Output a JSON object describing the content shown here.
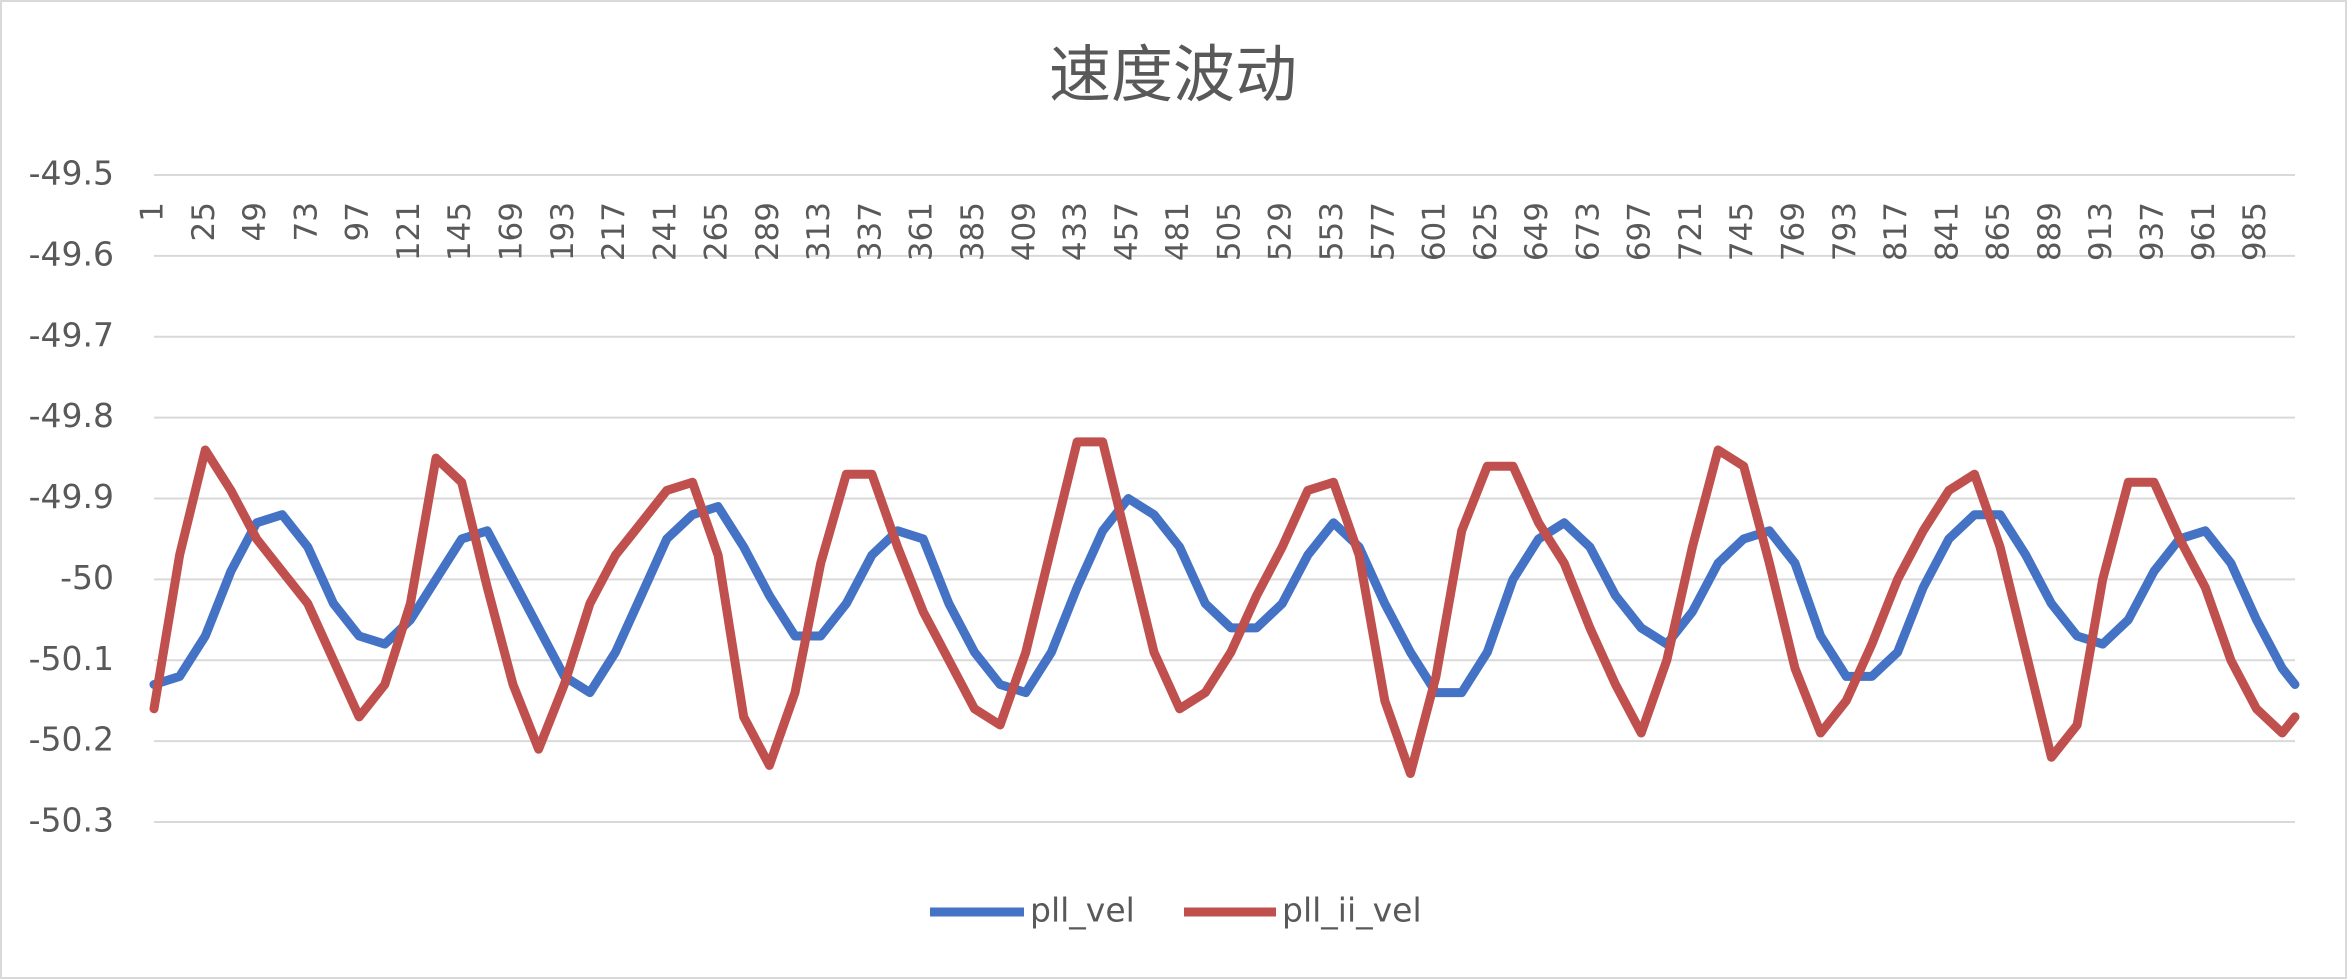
{
  "chart_data": {
    "type": "line",
    "title": "速度波动",
    "xlim": [
      1,
      1003
    ],
    "xticks": [
      1,
      25,
      49,
      73,
      97,
      121,
      145,
      169,
      193,
      217,
      241,
      265,
      289,
      313,
      337,
      361,
      385,
      409,
      433,
      457,
      481,
      505,
      529,
      553,
      577,
      601,
      625,
      649,
      673,
      697,
      721,
      745,
      769,
      793,
      817,
      841,
      865,
      889,
      913,
      937,
      961,
      985
    ],
    "ylim": [
      -50.3,
      -49.5
    ],
    "yticks": [
      -49.5,
      -49.6,
      -49.7,
      -49.8,
      -49.9,
      -50,
      -50.1,
      -50.2,
      -50.3
    ],
    "grid": true,
    "legend": "bottom",
    "x": [
      1,
      13,
      25,
      37,
      49,
      61,
      73,
      85,
      97,
      109,
      121,
      133,
      145,
      157,
      169,
      181,
      193,
      205,
      217,
      229,
      241,
      253,
      265,
      277,
      289,
      301,
      313,
      325,
      337,
      349,
      361,
      373,
      385,
      397,
      409,
      421,
      433,
      445,
      457,
      469,
      481,
      493,
      505,
      517,
      529,
      541,
      553,
      565,
      577,
      589,
      601,
      613,
      625,
      637,
      649,
      661,
      673,
      685,
      697,
      709,
      721,
      733,
      745,
      757,
      769,
      781,
      793,
      805,
      817,
      829,
      841,
      853,
      865,
      877,
      889,
      901,
      913,
      925,
      937,
      949,
      961,
      973,
      985,
      997,
      1003
    ],
    "series": [
      {
        "name": "pll_vel",
        "color": "#4472c4",
        "values": [
          -50.13,
          -50.12,
          -50.07,
          -49.99,
          -49.93,
          -49.92,
          -49.96,
          -50.03,
          -50.07,
          -50.08,
          -50.05,
          -50.0,
          -49.95,
          -49.94,
          -50.0,
          -50.06,
          -50.12,
          -50.14,
          -50.09,
          -50.02,
          -49.95,
          -49.92,
          -49.91,
          -49.96,
          -50.02,
          -50.07,
          -50.07,
          -50.03,
          -49.97,
          -49.94,
          -49.95,
          -50.03,
          -50.09,
          -50.13,
          -50.14,
          -50.09,
          -50.01,
          -49.94,
          -49.9,
          -49.92,
          -49.96,
          -50.03,
          -50.06,
          -50.06,
          -50.03,
          -49.97,
          -49.93,
          -49.96,
          -50.03,
          -50.09,
          -50.14,
          -50.14,
          -50.09,
          -50.0,
          -49.95,
          -49.93,
          -49.96,
          -50.02,
          -50.06,
          -50.08,
          -50.04,
          -49.98,
          -49.95,
          -49.94,
          -49.98,
          -50.07,
          -50.12,
          -50.12,
          -50.09,
          -50.01,
          -49.95,
          -49.92,
          -49.92,
          -49.97,
          -50.03,
          -50.07,
          -50.08,
          -50.05,
          -49.99,
          -49.95,
          -49.94,
          -49.98,
          -50.05,
          -50.11,
          -50.13
        ]
      },
      {
        "name": "pll_ii_vel",
        "color": "#c0504d",
        "values": [
          -50.16,
          -49.97,
          -49.84,
          -49.89,
          -49.95,
          -49.99,
          -50.03,
          -50.1,
          -50.17,
          -50.13,
          -50.03,
          -49.85,
          -49.88,
          -50.01,
          -50.13,
          -50.21,
          -50.13,
          -50.03,
          -49.97,
          -49.93,
          -49.89,
          -49.88,
          -49.97,
          -50.17,
          -50.23,
          -50.14,
          -49.98,
          -49.87,
          -49.87,
          -49.96,
          -50.04,
          -50.1,
          -50.16,
          -50.18,
          -50.09,
          -49.96,
          -49.83,
          -49.83,
          -49.96,
          -50.09,
          -50.16,
          -50.14,
          -50.09,
          -50.02,
          -49.96,
          -49.89,
          -49.88,
          -49.97,
          -50.15,
          -50.24,
          -50.12,
          -49.94,
          -49.86,
          -49.86,
          -49.93,
          -49.98,
          -50.06,
          -50.13,
          -50.19,
          -50.1,
          -49.96,
          -49.84,
          -49.86,
          -49.98,
          -50.11,
          -50.19,
          -50.15,
          -50.08,
          -50.0,
          -49.94,
          -49.89,
          -49.87,
          -49.96,
          -50.09,
          -50.22,
          -50.18,
          -50.0,
          -49.88,
          -49.88,
          -49.95,
          -50.01,
          -50.1,
          -50.16,
          -50.19,
          -50.17
        ]
      }
    ]
  }
}
